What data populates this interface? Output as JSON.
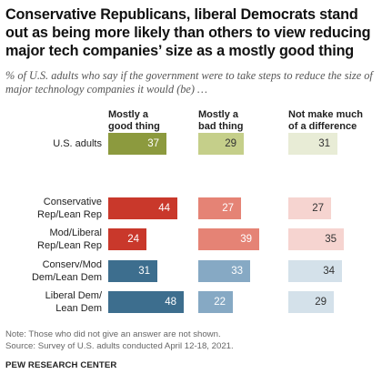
{
  "title": "Conservative Republicans, liberal Democrats stand out as being more likely than others to view reducing major tech companies’ size as a mostly good thing",
  "subtitle": "% of U.S. adults who say if the government were to take steps to reduce the size of major technology companies it would (be) …",
  "chart_data": {
    "type": "bar",
    "categories": [
      "U.S. adults",
      "Conservative Rep/Lean Rep",
      "Mod/Liberal Rep/Lean Rep",
      "Conserv/Mod Dem/Lean Dem",
      "Liberal Dem/ Lean Dem"
    ],
    "category_lines": [
      [
        "U.S. adults"
      ],
      [
        "Conservative",
        "Rep/Lean Rep"
      ],
      [
        "Mod/Liberal",
        "Rep/Lean Rep"
      ],
      [
        "Conserv/Mod",
        "Dem/Lean Dem"
      ],
      [
        "Liberal Dem/",
        "Lean Dem"
      ]
    ],
    "series": [
      {
        "name": "Mostly a good thing",
        "name_lines": [
          "Mostly a",
          "good thing"
        ],
        "values": [
          37,
          44,
          24,
          31,
          48
        ]
      },
      {
        "name": "Mostly a bad thing",
        "name_lines": [
          "Mostly a",
          "bad thing"
        ],
        "values": [
          29,
          27,
          39,
          33,
          22
        ]
      },
      {
        "name": "Not make much of a difference",
        "name_lines": [
          "Not make much",
          "of a difference"
        ],
        "values": [
          31,
          27,
          35,
          34,
          29
        ]
      }
    ],
    "colors": [
      [
        "#8c9a3e",
        "#c5cf8a",
        "#e8ecd6"
      ],
      [
        "#c9382b",
        "#e58375",
        "#f6d4d0"
      ],
      [
        "#c9382b",
        "#e58375",
        "#f6d4d0"
      ],
      [
        "#3d6e8e",
        "#86a9c4",
        "#d4e1ea"
      ],
      [
        "#3d6e8e",
        "#86a9c4",
        "#d4e1ea"
      ]
    ],
    "label_colors": [
      [
        "#ffffff",
        "#333333",
        "#333333"
      ],
      [
        "#ffffff",
        "#ffffff",
        "#333333"
      ],
      [
        "#ffffff",
        "#ffffff",
        "#333333"
      ],
      [
        "#ffffff",
        "#ffffff",
        "#333333"
      ],
      [
        "#ffffff",
        "#ffffff",
        "#333333"
      ]
    ]
  },
  "notes": [
    "Note: Those who did not give an answer are not shown.",
    "Source: Survey of U.S. adults conducted April 12-18, 2021."
  ],
  "org": "PEW RESEARCH CENTER"
}
